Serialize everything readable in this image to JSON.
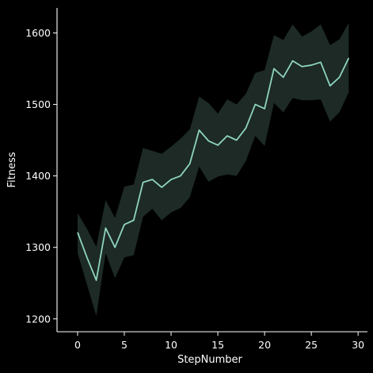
{
  "chart_data": {
    "type": "line",
    "title": "",
    "xlabel": "StepNumber",
    "ylabel": "Fitness",
    "xlim": [
      -2.2,
      31
    ],
    "ylim": [
      1182,
      1635
    ],
    "x_ticks": [
      0,
      5,
      10,
      15,
      20,
      25,
      30
    ],
    "y_ticks": [
      1200,
      1300,
      1400,
      1500,
      1600
    ],
    "grid": false,
    "legend": "none",
    "series": [
      {
        "color": "#8fd4c0",
        "x": [
          0,
          1,
          2,
          3,
          4,
          5,
          6,
          7,
          8,
          9,
          10,
          11,
          12,
          13,
          14,
          15,
          16,
          17,
          18,
          19,
          20,
          21,
          22,
          23,
          24,
          25,
          26,
          27,
          28,
          29
        ],
        "values": [
          1321,
          1286,
          1254,
          1327,
          1300,
          1332,
          1338,
          1391,
          1395,
          1384,
          1395,
          1400,
          1417,
          1464,
          1449,
          1443,
          1456,
          1450,
          1467,
          1500,
          1494,
          1550,
          1538,
          1561,
          1553,
          1555,
          1559,
          1526,
          1538,
          1565
        ],
        "ci_lower": [
          1292,
          1248,
          1204,
          1292,
          1257,
          1286,
          1289,
          1343,
          1354,
          1338,
          1349,
          1355,
          1370,
          1413,
          1392,
          1399,
          1402,
          1400,
          1421,
          1456,
          1442,
          1502,
          1489,
          1509,
          1506,
          1506,
          1507,
          1476,
          1489,
          1517
        ],
        "ci_upper": [
          1348,
          1326,
          1301,
          1366,
          1341,
          1385,
          1388,
          1439,
          1435,
          1431,
          1441,
          1452,
          1465,
          1511,
          1502,
          1487,
          1507,
          1500,
          1515,
          1544,
          1548,
          1597,
          1590,
          1612,
          1595,
          1602,
          1612,
          1583,
          1591,
          1614
        ]
      }
    ]
  }
}
